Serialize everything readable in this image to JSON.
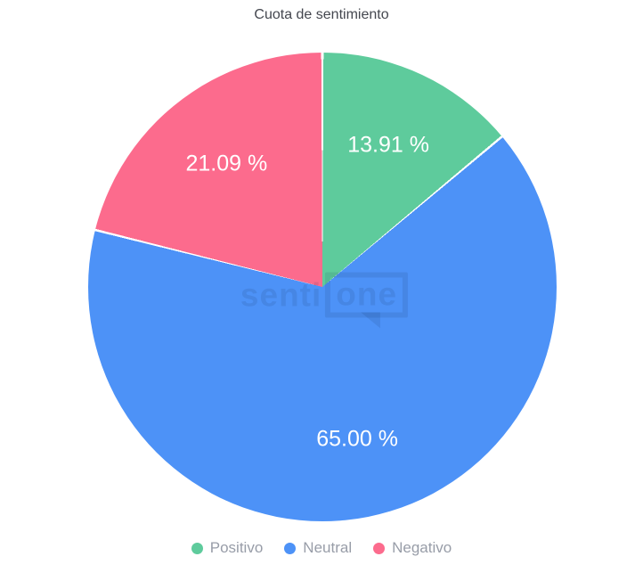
{
  "chart": {
    "title": "Cuota de sentimiento",
    "watermark": {
      "text_left": "senti",
      "text_boxed": "one"
    }
  },
  "chart_data": {
    "type": "pie",
    "title": "Cuota de sentimiento",
    "categories": [
      "Positivo",
      "Neutral",
      "Negativo"
    ],
    "values": [
      13.91,
      65.0,
      21.09
    ],
    "slice_labels": [
      "13.91 %",
      "65.00 %",
      "21.09 %"
    ],
    "colors": [
      "#5ecb9c",
      "#4d92f7",
      "#fc6b8d"
    ],
    "start_angle_deg": 0,
    "direction": "clockwise",
    "legend_position": "bottom",
    "slice_label_color": "#ffffff",
    "separator_color": "#ffffff"
  }
}
